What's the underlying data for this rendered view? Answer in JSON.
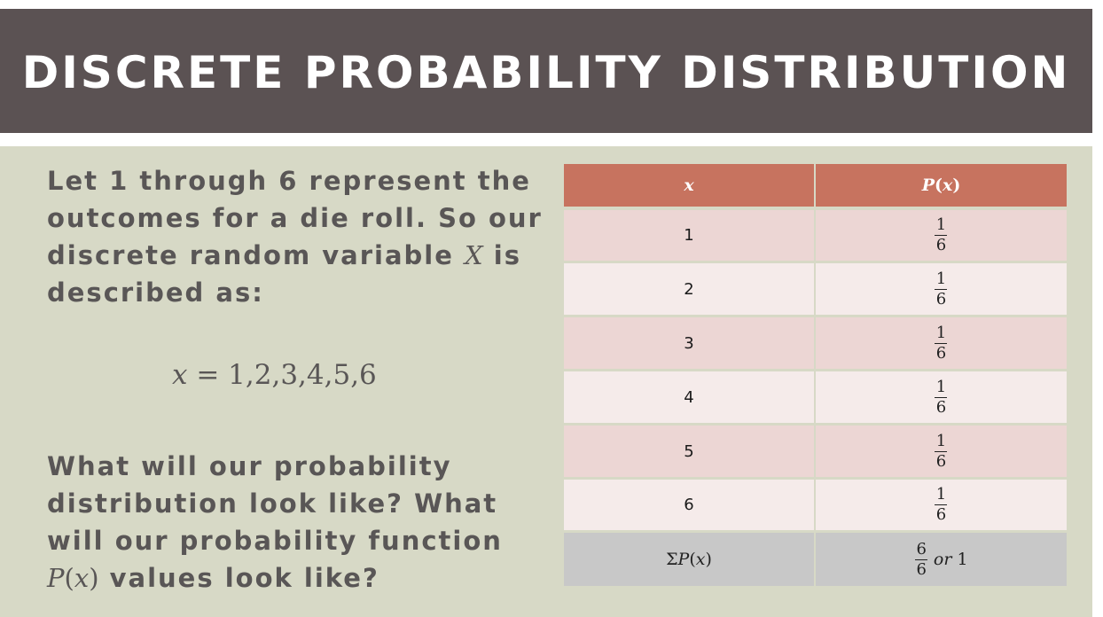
{
  "title": "DISCRETE PROBABILITY DISTRIBUTION",
  "intro": {
    "line1": "Let 1 through 6 represent the",
    "line2": "outcomes for a die roll. So our",
    "line3_prefix": "discrete random variable ",
    "line3_var": "X",
    "line3_suffix": " is",
    "line4": "described as:"
  },
  "equation": {
    "var": "x",
    "rest": " = 1,2,3,4,5,6"
  },
  "question": {
    "line1": "What will our probability",
    "line2": "distribution look like? What",
    "line3": "will our probability function",
    "line4_var": "P",
    "line4_paren_open": "(",
    "line4_inner": "x",
    "line4_paren_close": ")",
    "line4_suffix": " values look like?"
  },
  "table": {
    "header_x": "x",
    "header_p_func": "P",
    "header_p_open": "(",
    "header_p_var": "x",
    "header_p_close": ")",
    "rows": [
      {
        "x": "1",
        "num": "1",
        "den": "6"
      },
      {
        "x": "2",
        "num": "1",
        "den": "6"
      },
      {
        "x": "3",
        "num": "1",
        "den": "6"
      },
      {
        "x": "4",
        "num": "1",
        "den": "6"
      },
      {
        "x": "5",
        "num": "1",
        "den": "6"
      },
      {
        "x": "6",
        "num": "1",
        "den": "6"
      }
    ],
    "sum": {
      "sigma": "Σ",
      "func": "P",
      "open": "(",
      "var": "x",
      "close": ")",
      "num": "6",
      "den": "6",
      "or_word": "or",
      "one": "1"
    }
  },
  "colors": {
    "title_bar": "#5b5253",
    "content_bg": "#d7d9c6",
    "table_header": "#c7735f",
    "row_odd": "#ecd6d4",
    "row_even": "#f5ebea",
    "row_sum": "#c8c8c8",
    "text": "#595656"
  }
}
